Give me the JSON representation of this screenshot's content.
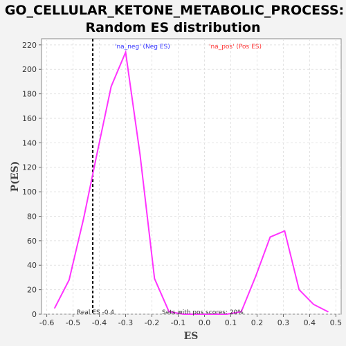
{
  "chart_data": {
    "type": "line",
    "title_line1": "GO_CELLULAR_KETONE_METABOLIC_PROCESS:",
    "title_line2": "Random ES distribution",
    "xlabel": "ES",
    "ylabel": "P(ES)",
    "xlim": [
      -0.62,
      0.52
    ],
    "ylim": [
      0,
      225
    ],
    "x_ticks": [
      -0.6,
      -0.5,
      -0.4,
      -0.3,
      -0.2,
      -0.1,
      0.0,
      0.1,
      0.2,
      0.3,
      0.4,
      0.5
    ],
    "y_ticks": [
      0,
      20,
      40,
      60,
      80,
      100,
      120,
      140,
      160,
      180,
      200,
      220
    ],
    "grid": true,
    "series": [
      {
        "color": "#ff33ff",
        "x": [
          -0.57,
          -0.515,
          -0.46,
          -0.41,
          -0.355,
          -0.3,
          -0.245,
          -0.19,
          -0.135,
          -0.08,
          -0.025,
          0.03,
          0.085,
          0.14,
          0.195,
          0.25,
          0.305,
          0.36,
          0.415,
          0.47
        ],
        "y": [
          5,
          28,
          78,
          130,
          186,
          214,
          130,
          29,
          2,
          0,
          0,
          0,
          0,
          2,
          31,
          63,
          68,
          20,
          8,
          2
        ]
      }
    ],
    "real_es": -0.425,
    "legend": {
      "neg_label": "'na_neg' (Neg ES)",
      "neg_color": "#3333ff",
      "pos_label": "'na_pos' (Pos ES)",
      "pos_color": "#ff3333"
    },
    "annotations": {
      "real_es_text": "Real ES -0.4",
      "sets_text": "Sets with pos scores: 20%"
    }
  }
}
